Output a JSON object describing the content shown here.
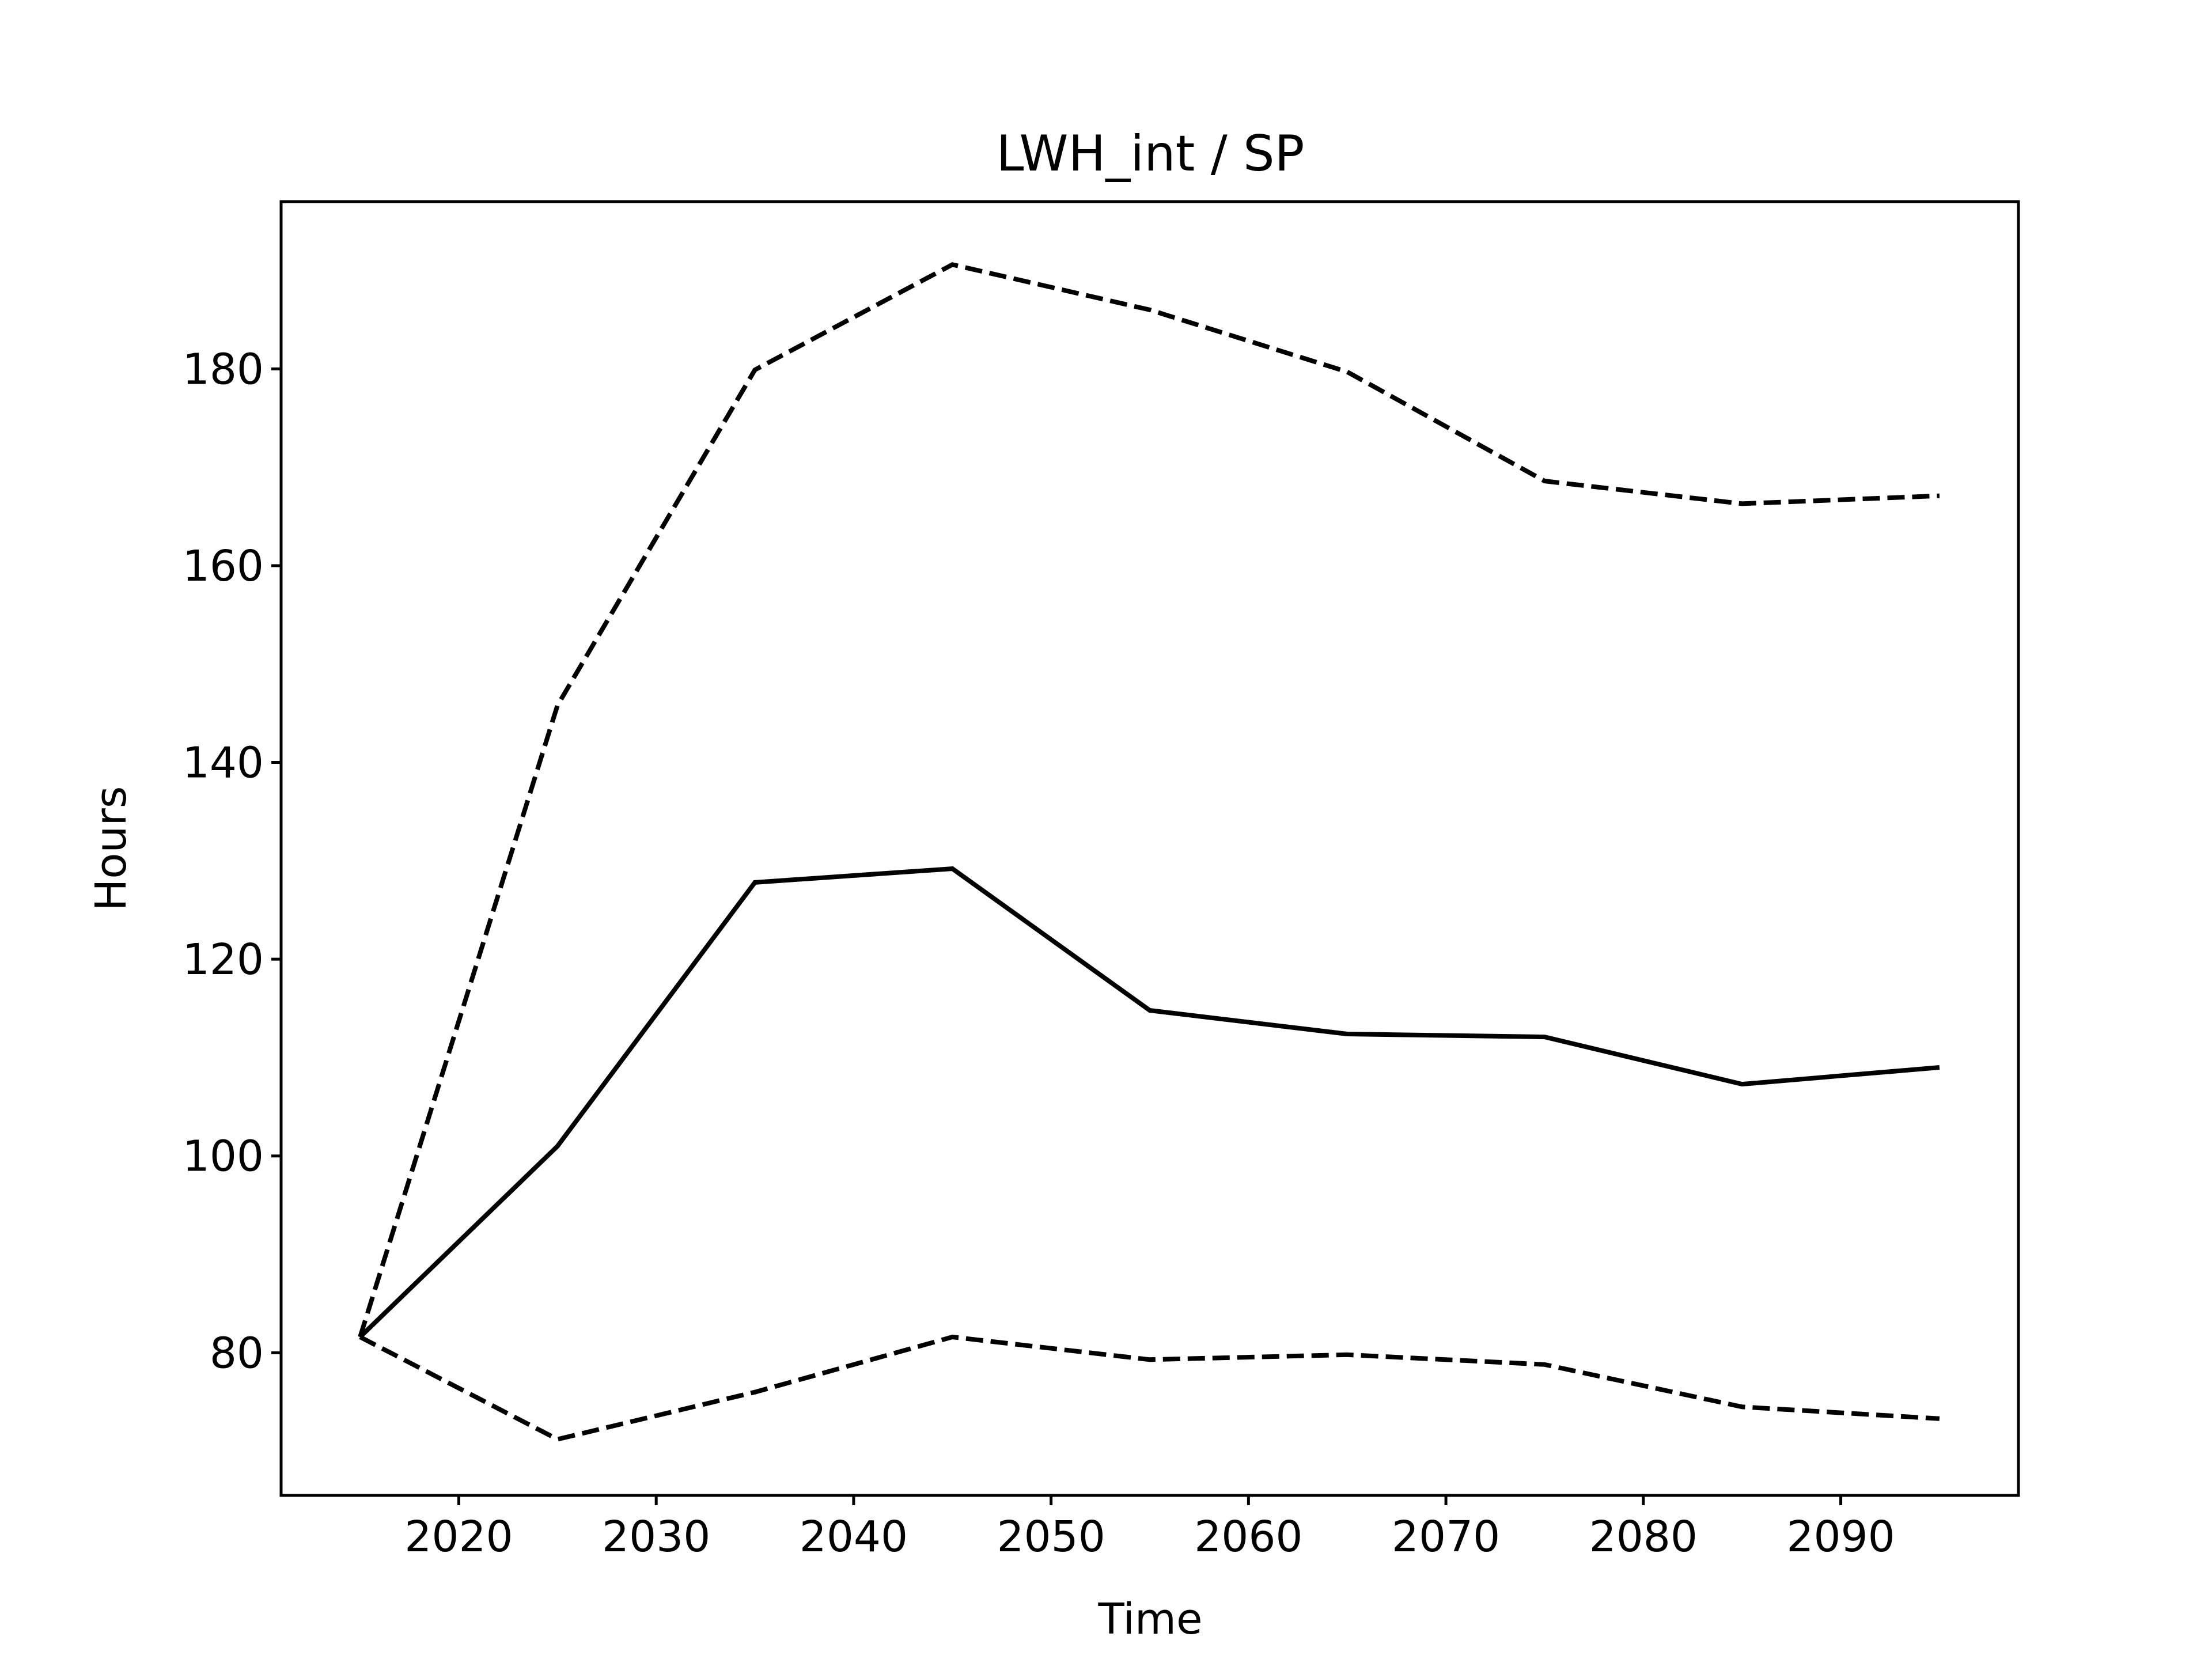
{
  "chart_data": {
    "type": "line",
    "title": "LWH_int / SP",
    "xlabel": "Time",
    "ylabel": "Hours",
    "x": [
      2015,
      2025,
      2035,
      2045,
      2055,
      2065,
      2075,
      2085,
      2095
    ],
    "xlim": [
      2011,
      2099
    ],
    "ylim": [
      65.5,
      197.0
    ],
    "xticks": [
      2020,
      2030,
      2040,
      2050,
      2060,
      2070,
      2080,
      2090
    ],
    "yticks": [
      80,
      100,
      120,
      140,
      160,
      180
    ],
    "grid": false,
    "legend": "none",
    "series": [
      {
        "style": "solid",
        "color": "#000000",
        "values": [
          81.6,
          101.0,
          127.8,
          129.2,
          114.8,
          112.4,
          112.1,
          107.3,
          109.0
        ]
      },
      {
        "style": "dashed",
        "color": "#000000",
        "values": [
          81.6,
          145.8,
          179.9,
          190.6,
          186.0,
          179.7,
          168.6,
          166.3,
          167.1
        ]
      },
      {
        "style": "dashed",
        "color": "#000000",
        "values": [
          81.6,
          71.2,
          76.0,
          81.6,
          79.3,
          79.8,
          78.8,
          74.5,
          73.3
        ]
      }
    ]
  }
}
